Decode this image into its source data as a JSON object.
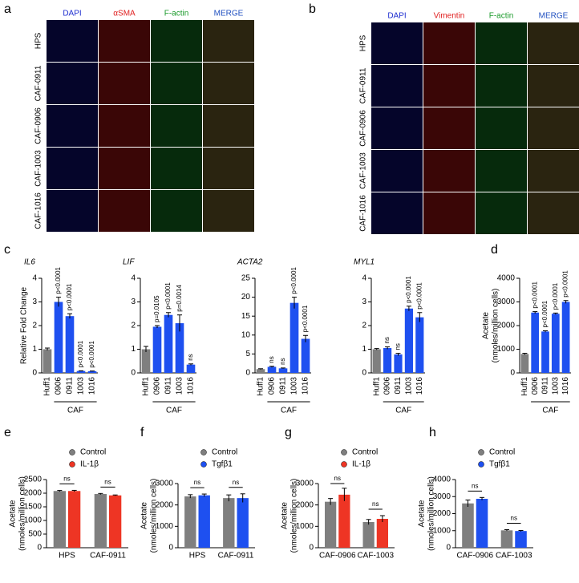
{
  "figure_a": {
    "letter": "a",
    "columns": [
      "DAPI",
      "αSMA",
      "F-actin",
      "MERGE"
    ],
    "rows": [
      "HPS",
      "CAF-0911",
      "CAF-0906",
      "CAF-1003",
      "CAF-1016"
    ]
  },
  "figure_b": {
    "letter": "b",
    "columns": [
      "DAPI",
      "Vimentin",
      "F-actin",
      "MERGE"
    ],
    "rows": [
      "HPS",
      "CAF-0911",
      "CAF-0906",
      "CAF-1003",
      "CAF-1016"
    ]
  },
  "chart_data": [
    {
      "type": "bar",
      "panel": "c",
      "title": "IL6",
      "ylabel": [
        "Relative Fold Change"
      ],
      "categories": [
        "Huff1",
        "0906",
        "0911",
        "1003",
        "1016"
      ],
      "group_label": "CAF",
      "values": [
        1.0,
        3.0,
        2.4,
        0.08,
        0.07
      ],
      "errors": [
        0.05,
        0.2,
        0.1,
        0.01,
        0.01
      ],
      "annotations": [
        null,
        "p<0.0001",
        "p<0.0001",
        "p<0.0001",
        "p<0.0001"
      ],
      "colors": [
        "#7f7f7f",
        "#1e50f0",
        "#1e50f0",
        "#1e50f0",
        "#1e50f0"
      ],
      "ylim": [
        0,
        4
      ],
      "yticks": [
        0,
        1,
        2,
        3,
        4
      ],
      "grid": false
    },
    {
      "type": "bar",
      "title": "LIF",
      "categories": [
        "Huff1",
        "0906",
        "0911",
        "1003",
        "1016"
      ],
      "group_label": "CAF",
      "values": [
        1.0,
        1.95,
        2.45,
        2.1,
        0.35
      ],
      "errors": [
        0.12,
        0.05,
        0.1,
        0.35,
        0.03
      ],
      "annotations": [
        null,
        "p=0.0105",
        "p<0.0001",
        "p=0.0014",
        "ns"
      ],
      "colors": [
        "#7f7f7f",
        "#1e50f0",
        "#1e50f0",
        "#1e50f0",
        "#1e50f0"
      ],
      "ylim": [
        0,
        4
      ],
      "yticks": [
        0,
        1,
        2,
        3,
        4
      ],
      "grid": false
    },
    {
      "type": "bar",
      "title": "ACTA2",
      "categories": [
        "Huff1",
        "0906",
        "0911",
        "1003",
        "1016"
      ],
      "group_label": "CAF",
      "values": [
        1.0,
        1.6,
        1.2,
        18.5,
        9.0
      ],
      "errors": [
        0.1,
        0.15,
        0.1,
        1.5,
        0.9
      ],
      "annotations": [
        null,
        "ns",
        "ns",
        "p<0.0001",
        "p<0.0001"
      ],
      "colors": [
        "#7f7f7f",
        "#1e50f0",
        "#1e50f0",
        "#1e50f0",
        "#1e50f0"
      ],
      "ylim": [
        0,
        25
      ],
      "yticks": [
        0,
        5,
        10,
        15,
        20,
        25
      ],
      "grid": false
    },
    {
      "type": "bar",
      "title": "MYL1",
      "categories": [
        "Huff1",
        "0906",
        "0911",
        "1003",
        "1016"
      ],
      "group_label": "CAF",
      "values": [
        1.0,
        1.05,
        0.78,
        2.72,
        2.35
      ],
      "errors": [
        0.03,
        0.05,
        0.05,
        0.1,
        0.2
      ],
      "annotations": [
        null,
        "ns",
        "ns",
        "p<0.0001",
        "p<0.0001"
      ],
      "colors": [
        "#7f7f7f",
        "#1e50f0",
        "#1e50f0",
        "#1e50f0",
        "#1e50f0"
      ],
      "ylim": [
        0,
        4
      ],
      "yticks": [
        0,
        1,
        2,
        3,
        4
      ],
      "grid": false
    },
    {
      "type": "bar",
      "panel": "d",
      "ylabel": [
        "Acetate",
        "(nmoles/million cells)"
      ],
      "categories": [
        "Huff1",
        "0906",
        "0911",
        "1003",
        "1016"
      ],
      "group_label": "CAF",
      "values": [
        800,
        2550,
        1750,
        2500,
        3000
      ],
      "errors": [
        30,
        40,
        30,
        30,
        60
      ],
      "annotations": [
        null,
        "p<0.0001",
        "p<0.0001",
        "p<0.0001",
        "p<0.0001"
      ],
      "colors": [
        "#7f7f7f",
        "#1e50f0",
        "#1e50f0",
        "#1e50f0",
        "#1e50f0"
      ],
      "ylim": [
        0,
        4000
      ],
      "yticks": [
        0,
        1000,
        2000,
        3000,
        4000
      ],
      "grid": false
    },
    {
      "type": "grouped_bar",
      "panel": "e",
      "ylabel": [
        "Acetate",
        "(nmoles/million cells)"
      ],
      "categories": [
        "HPS",
        "CAF-0911"
      ],
      "annotations": [
        "ns",
        "ns"
      ],
      "series": [
        {
          "name": "Control",
          "color": "#7f7f7f",
          "values": [
            2080,
            1970
          ],
          "errors": [
            20,
            20
          ]
        },
        {
          "name": "IL-1β",
          "color": "#ee3524",
          "values": [
            2080,
            1920
          ],
          "errors": [
            25,
            15
          ]
        }
      ],
      "ylim": [
        0,
        2500
      ],
      "yticks": [
        0,
        500,
        1000,
        1500,
        2000,
        2500
      ],
      "legend": "top-right",
      "grid": false
    },
    {
      "type": "grouped_bar",
      "panel": "f",
      "ylabel": [
        "Acetate",
        "(nmoles/million cells)"
      ],
      "categories": [
        "HPS",
        "CAF-0911"
      ],
      "annotations": [
        "ns",
        "ns"
      ],
      "series": [
        {
          "name": "Control",
          "color": "#7f7f7f",
          "values": [
            2400,
            2320
          ],
          "errors": [
            80,
            150
          ]
        },
        {
          "name": "Tgfβ1",
          "color": "#1e50f0",
          "values": [
            2450,
            2320
          ],
          "errors": [
            60,
            200
          ]
        }
      ],
      "ylim": [
        0,
        3000
      ],
      "yticks": [
        0,
        1000,
        2000,
        3000
      ],
      "legend": "top-right",
      "grid": false
    },
    {
      "type": "grouped_bar",
      "panel": "g",
      "ylabel": [
        "Acetate",
        "(nmoles/million cells)"
      ],
      "categories": [
        "CAF-0906",
        "CAF-1003"
      ],
      "annotations": [
        "ns",
        "ns"
      ],
      "series": [
        {
          "name": "Control",
          "color": "#7f7f7f",
          "values": [
            2150,
            1200
          ],
          "errors": [
            150,
            120
          ]
        },
        {
          "name": "IL-1β",
          "color": "#ee3524",
          "values": [
            2480,
            1350
          ],
          "errors": [
            300,
            150
          ]
        }
      ],
      "ylim": [
        0,
        3000
      ],
      "yticks": [
        0,
        1000,
        2000,
        3000
      ],
      "legend": "top-right",
      "grid": false
    },
    {
      "type": "grouped_bar",
      "panel": "h",
      "ylabel": [
        "Acetate",
        "(nmoles/million cells)"
      ],
      "categories": [
        "CAF-0906",
        "CAF-1003"
      ],
      "annotations": [
        "ns",
        "ns"
      ],
      "series": [
        {
          "name": "Control",
          "color": "#7f7f7f",
          "values": [
            2600,
            1020
          ],
          "errors": [
            200,
            40
          ]
        },
        {
          "name": "Tgfβ1",
          "color": "#1e50f0",
          "values": [
            2870,
            980
          ],
          "errors": [
            80,
            30
          ]
        }
      ],
      "ylim": [
        0,
        4000
      ],
      "yticks": [
        0,
        1000,
        2000,
        3000,
        4000
      ],
      "legend": "top-right",
      "grid": false
    }
  ]
}
